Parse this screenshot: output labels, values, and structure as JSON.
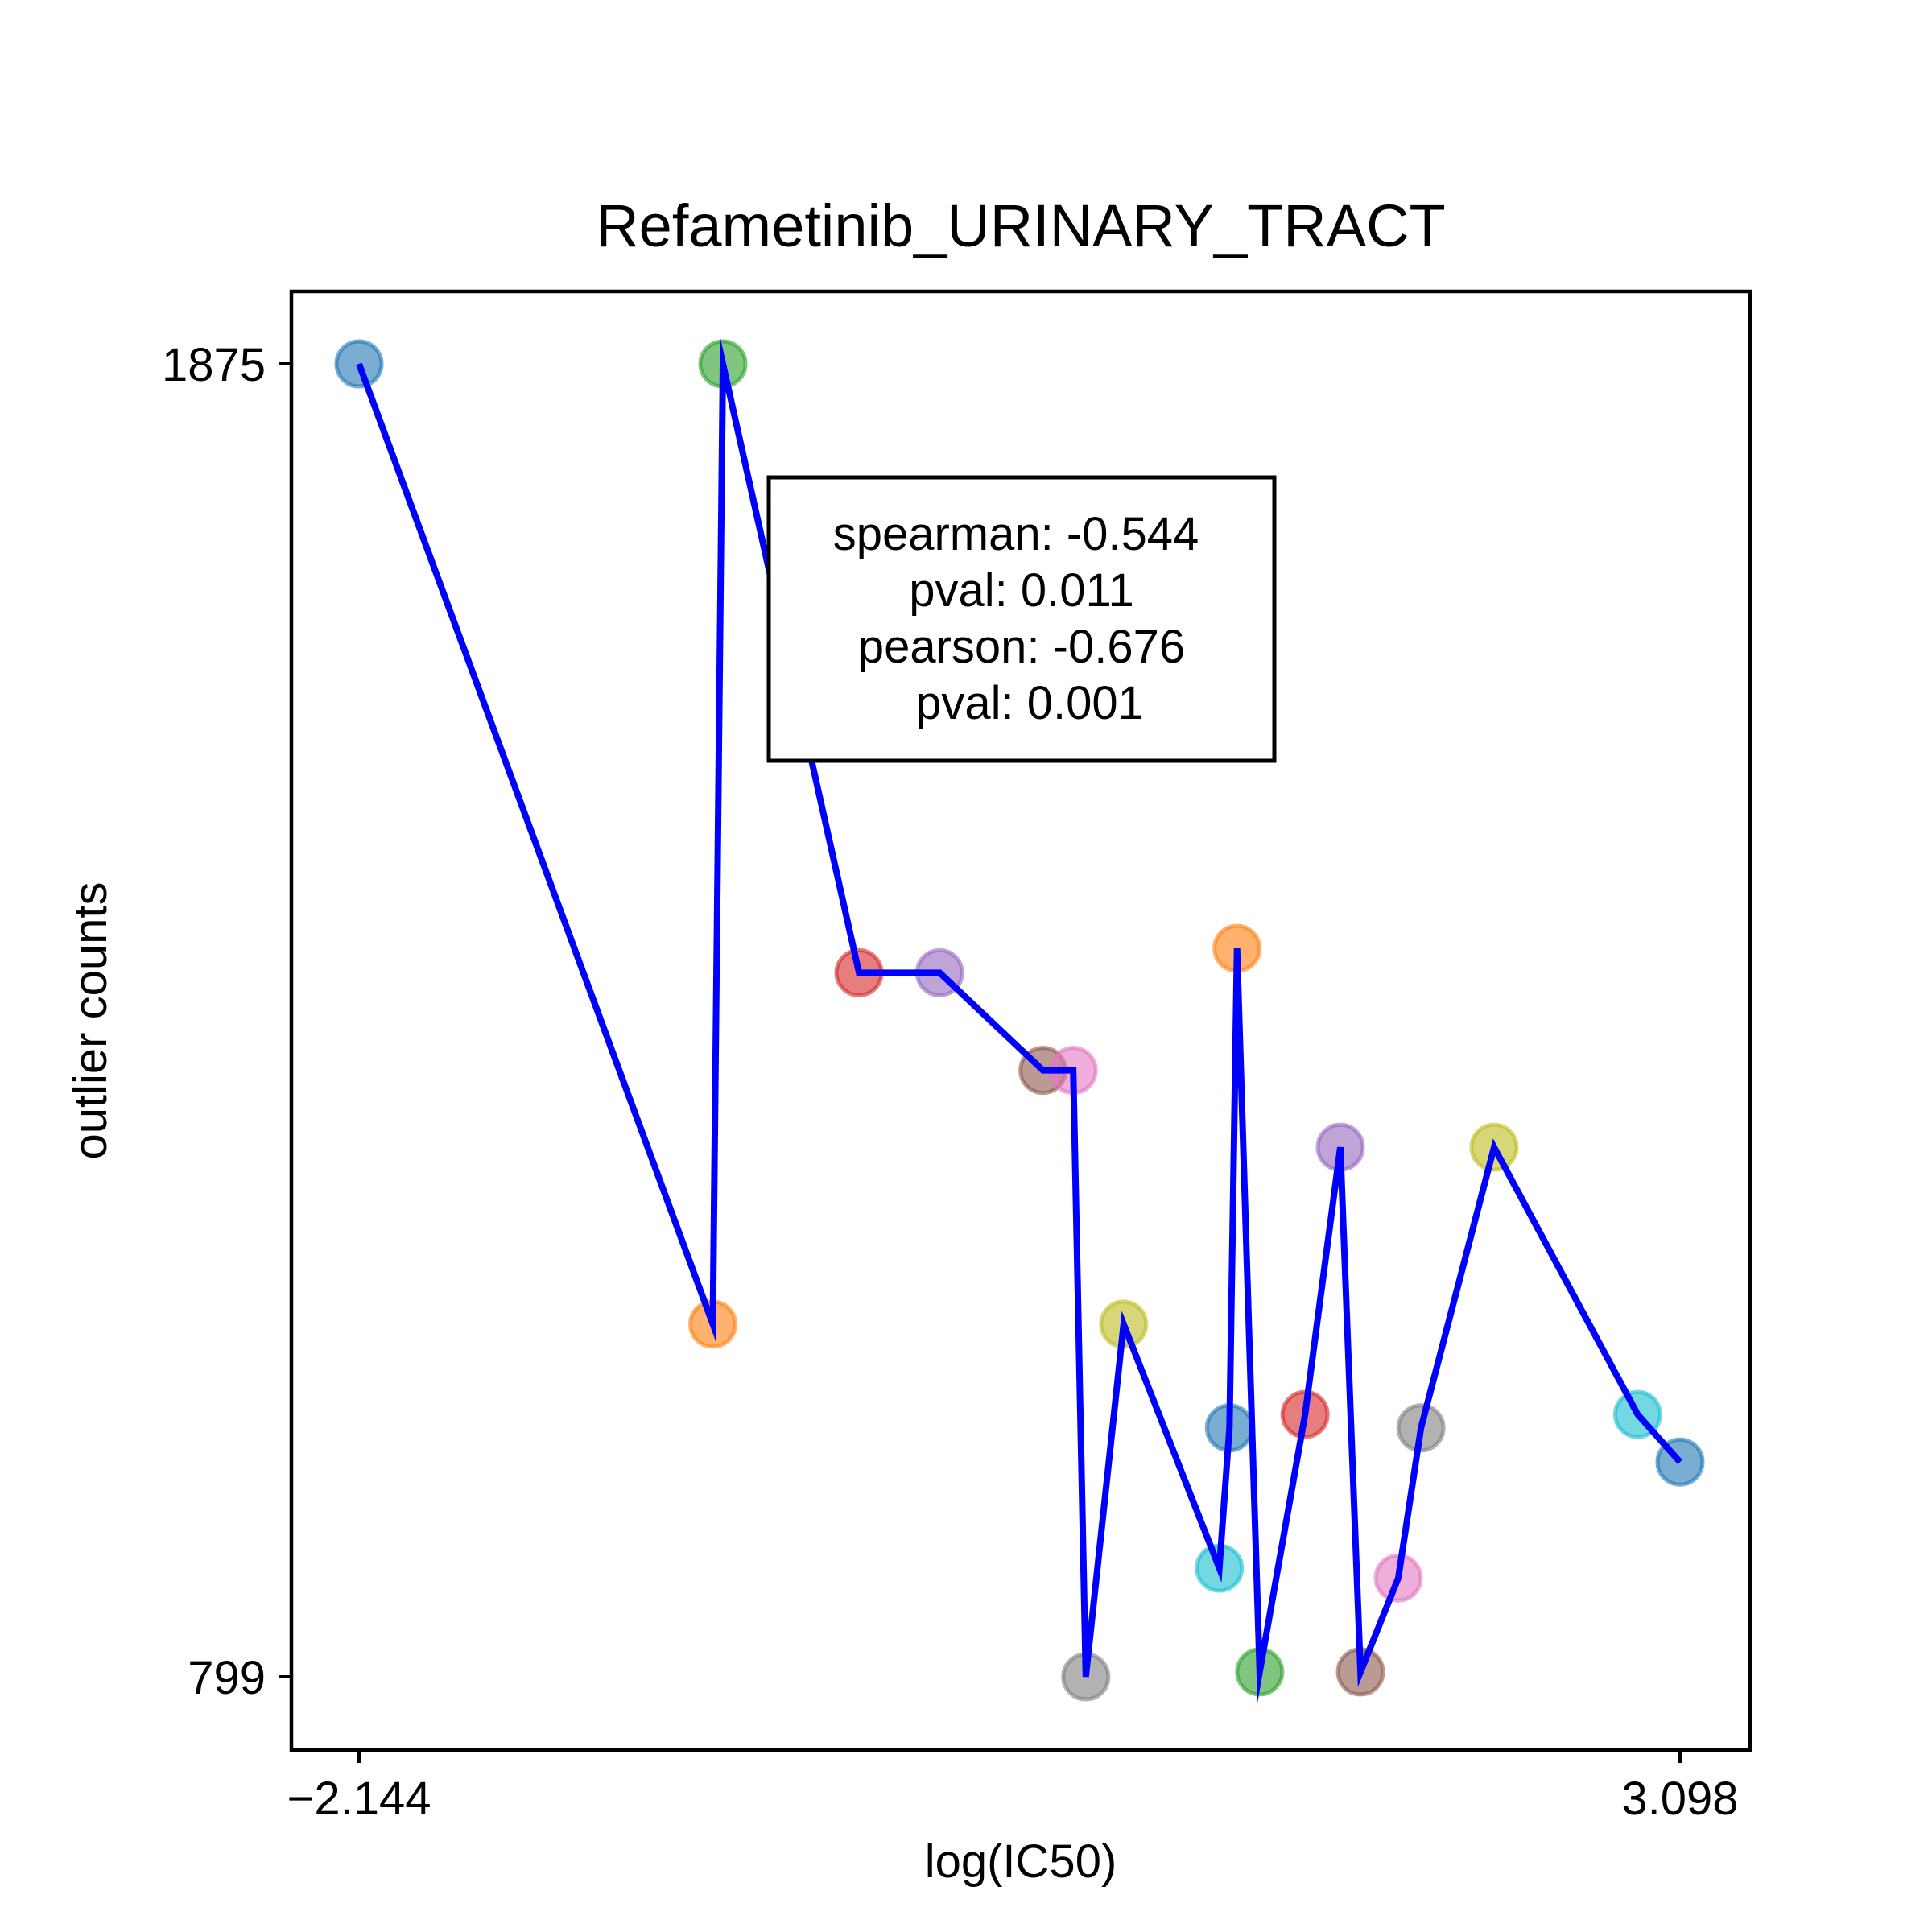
{
  "chart_data": {
    "type": "scatter",
    "title": "Refametinib_URINARY_TRACT",
    "xlabel": "log(IC50)",
    "ylabel": "outlier counts",
    "xlim": [
      -2.144,
      3.098
    ],
    "ylim": [
      799,
      1875
    ],
    "x_ticks": [
      "−2.144",
      "3.098"
    ],
    "y_ticks": [
      "1875",
      "799"
    ],
    "grid": false,
    "annotation": {
      "lines": [
        "spearman: -0.544",
        "pval: 0.011",
        "pearson: -0.676",
        "pval: 0.001"
      ],
      "placement": "upper-center"
    },
    "line_color": "#0000ff",
    "point_colors": [
      "#1f77b4",
      "#ff7f0e",
      "#2ca02c",
      "#d62728",
      "#9467bd",
      "#8c564b",
      "#e377c2",
      "#7f7f7f",
      "#bcbd22",
      "#17becf"
    ],
    "points": [
      {
        "x": -2.144,
        "y": 1875
      },
      {
        "x": -0.74,
        "y": 1088
      },
      {
        "x": -0.7,
        "y": 1875
      },
      {
        "x": -0.16,
        "y": 1376
      },
      {
        "x": 0.16,
        "y": 1376
      },
      {
        "x": 0.57,
        "y": 1296
      },
      {
        "x": 0.69,
        "y": 1296
      },
      {
        "x": 0.74,
        "y": 799
      },
      {
        "x": 0.89,
        "y": 1088
      },
      {
        "x": 1.27,
        "y": 888
      },
      {
        "x": 1.31,
        "y": 1003
      },
      {
        "x": 1.34,
        "y": 1396
      },
      {
        "x": 1.43,
        "y": 803
      },
      {
        "x": 1.61,
        "y": 1014
      },
      {
        "x": 1.75,
        "y": 1233
      },
      {
        "x": 1.83,
        "y": 803
      },
      {
        "x": 1.98,
        "y": 880
      },
      {
        "x": 2.07,
        "y": 1003
      },
      {
        "x": 2.36,
        "y": 1233
      },
      {
        "x": 2.93,
        "y": 1014
      },
      {
        "x": 3.098,
        "y": 975
      }
    ]
  }
}
